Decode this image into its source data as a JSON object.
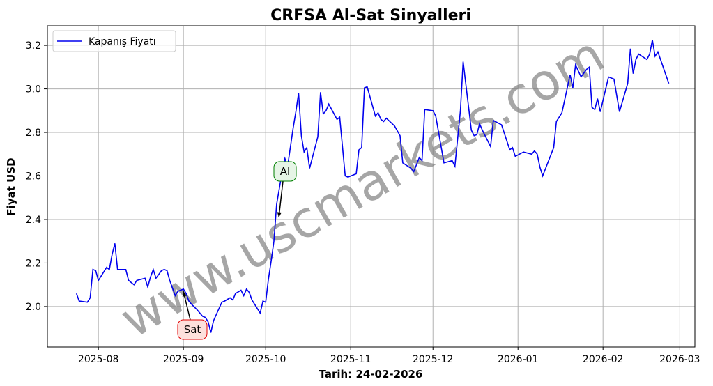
{
  "chart_data": {
    "type": "line",
    "title": "CRFSA Al-Sat Sinyalleri",
    "x_label": "Tarih: 24-02-2026",
    "y_label": "Fiyat USD",
    "watermark": "www.uscmarkets.com",
    "legend": "upper left",
    "grid": true,
    "annotations": [
      {
        "text": "Al",
        "color": "#008000",
        "background": "#e6f5e6"
      },
      {
        "text": "Sat",
        "color": "#e00000",
        "background": "#fde0dc"
      }
    ],
    "series": [
      {
        "name": "Kapanış Fiyatı",
        "color": "#0000ee",
        "x": [
          -8,
          -7,
          -4,
          -3,
          -2,
          -1,
          0,
          3,
          4,
          5,
          6,
          7,
          10,
          11,
          13,
          14,
          17,
          18,
          19,
          20,
          21,
          23,
          24,
          25,
          26,
          28,
          29,
          31,
          32,
          33,
          34,
          36,
          38,
          39,
          40,
          41,
          42,
          45,
          46,
          48,
          49,
          50,
          52,
          53,
          54,
          55,
          56,
          59,
          60,
          61,
          62,
          63,
          64,
          65,
          66,
          67,
          68,
          69,
          71,
          72,
          73,
          74,
          75,
          76,
          77,
          80,
          81,
          82,
          83,
          84,
          87,
          88,
          90,
          91,
          94,
          95,
          96,
          97,
          98,
          101,
          102,
          103,
          104,
          105,
          108,
          110,
          111,
          114,
          115,
          117,
          118,
          119,
          122,
          123,
          126,
          129,
          130,
          132,
          133,
          136,
          137,
          138,
          139,
          140,
          143,
          144,
          147,
          150,
          151,
          152,
          155,
          158,
          159,
          160,
          161,
          162,
          166,
          167,
          169,
          172,
          173,
          174,
          176,
          178,
          179,
          180,
          181,
          182,
          183,
          186,
          188,
          190,
          193,
          194,
          195,
          196,
          197,
          200,
          201,
          202,
          203,
          204,
          208
        ],
        "values": [
          2.06,
          2.025,
          2.02,
          2.04,
          2.17,
          2.165,
          2.12,
          2.18,
          2.17,
          2.24,
          2.29,
          2.17,
          2.17,
          2.12,
          2.1,
          2.12,
          2.13,
          2.09,
          2.135,
          2.17,
          2.13,
          2.165,
          2.17,
          2.165,
          2.12,
          2.05,
          2.07,
          2.08,
          2.06,
          2.025,
          2.01,
          1.985,
          1.955,
          1.95,
          1.93,
          1.88,
          1.935,
          2.02,
          2.025,
          2.04,
          2.03,
          2.06,
          2.075,
          2.05,
          2.08,
          2.065,
          2.03,
          1.97,
          2.025,
          2.02,
          2.125,
          2.21,
          2.3,
          2.47,
          2.545,
          2.62,
          2.68,
          2.645,
          2.82,
          2.895,
          2.98,
          2.785,
          2.71,
          2.73,
          2.635,
          2.78,
          2.985,
          2.885,
          2.9,
          2.93,
          2.86,
          2.87,
          2.6,
          2.595,
          2.61,
          2.72,
          2.73,
          3.005,
          3.01,
          2.875,
          2.89,
          2.86,
          2.85,
          2.865,
          2.83,
          2.785,
          2.66,
          2.635,
          2.62,
          2.685,
          2.67,
          2.905,
          2.9,
          2.875,
          2.66,
          2.67,
          2.645,
          2.9,
          3.125,
          2.81,
          2.785,
          2.79,
          2.84,
          2.81,
          2.735,
          2.855,
          2.835,
          2.72,
          2.73,
          2.69,
          2.71,
          2.7,
          2.715,
          2.7,
          2.64,
          2.6,
          2.73,
          2.85,
          2.89,
          3.065,
          3.005,
          3.11,
          3.055,
          3.09,
          3.1,
          2.915,
          2.905,
          2.955,
          2.895,
          3.055,
          3.045,
          2.895,
          3.025,
          3.185,
          3.07,
          3.135,
          3.16,
          3.135,
          3.16,
          3.225,
          3.15,
          3.17,
          3.025
        ]
      }
    ],
    "xlim": [
      -18.6,
      217.5
    ],
    "xticks": [
      {
        "value": 0,
        "label": "2025-08"
      },
      {
        "value": 31,
        "label": "2025-09"
      },
      {
        "value": 61,
        "label": "2025-10"
      },
      {
        "value": 92,
        "label": "2025-11"
      },
      {
        "value": 122,
        "label": "2025-12"
      },
      {
        "value": 153,
        "label": "2026-01"
      },
      {
        "value": 184,
        "label": "2026-02"
      },
      {
        "value": 212,
        "label": "2026-03"
      }
    ],
    "ylim": [
      1.814,
      3.29
    ],
    "yticks": [
      {
        "value": 2,
        "label": "2.0"
      },
      2.2,
      2.4,
      2.6,
      2.8,
      {
        "value": 3,
        "label": "3.0"
      },
      3.2
    ]
  }
}
